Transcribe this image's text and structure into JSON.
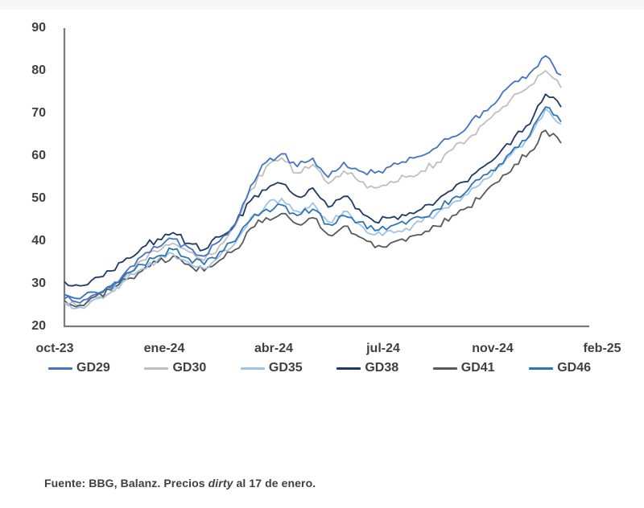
{
  "chart_data": {
    "type": "line",
    "title": "",
    "x_axis_tick_labels": [
      "oct-23",
      "ene-24",
      "abr-24",
      "jul-24",
      "nov-24",
      "feb-25"
    ],
    "y_ticks": [
      20,
      30,
      40,
      50,
      60,
      70,
      80,
      90
    ],
    "ylim": [
      20,
      90
    ],
    "grid": false,
    "legend_position": "bottom",
    "axis_color": "#7a7a7a",
    "tick_label_color": "#404040",
    "x": [
      "2023-10-01",
      "2023-10-16",
      "2023-10-31",
      "2023-11-15",
      "2023-11-30",
      "2023-12-15",
      "2023-12-30",
      "2024-01-14",
      "2024-01-29",
      "2024-02-13",
      "2024-02-28",
      "2024-03-14",
      "2024-03-29",
      "2024-04-13",
      "2024-04-28",
      "2024-05-13",
      "2024-05-28",
      "2024-06-12",
      "2024-06-27",
      "2024-07-12",
      "2024-07-27",
      "2024-08-11",
      "2024-08-26",
      "2024-09-10",
      "2024-09-25",
      "2024-10-10",
      "2024-10-25",
      "2024-11-09",
      "2024-11-24",
      "2024-12-09",
      "2024-12-24",
      "2025-01-08",
      "2025-01-17"
    ],
    "series": [
      {
        "name": "GD29",
        "color": "#4472C4",
        "values": [
          26.5,
          25.5,
          27.5,
          29,
          33,
          36.5,
          38.5,
          40.5,
          38.5,
          36.5,
          40,
          44,
          53,
          58.5,
          60.5,
          57.5,
          59.5,
          55,
          58.5,
          56.5,
          56,
          57.5,
          58.5,
          60,
          62,
          64.5,
          67,
          70.5,
          73.5,
          77.5,
          79.5,
          83.5,
          79
        ]
      },
      {
        "name": "GD30",
        "color": "#BFBFBF",
        "values": [
          25.5,
          24.8,
          26.5,
          28,
          32,
          35.5,
          37.5,
          39.5,
          37.5,
          35.5,
          39,
          43.5,
          52,
          57.5,
          59.5,
          56,
          58,
          53.5,
          56.5,
          54,
          52.5,
          54,
          55,
          56.5,
          58.5,
          61.5,
          64,
          67.5,
          70.5,
          74.5,
          76.5,
          80,
          76
        ]
      },
      {
        "name": "GD35",
        "color": "#9DC3E6",
        "values": [
          25.5,
          24.5,
          26.5,
          28,
          31,
          33.5,
          35.5,
          37,
          35,
          33.5,
          36.5,
          39.5,
          45.5,
          48.5,
          50,
          47,
          49,
          44.5,
          47,
          44,
          41.5,
          42.5,
          43,
          44.5,
          46.5,
          49,
          51,
          54.5,
          57.5,
          61.5,
          64.5,
          71,
          67.5
        ]
      },
      {
        "name": "GD38",
        "color": "#203864",
        "values": [
          30.5,
          29.5,
          31.5,
          33,
          36,
          38.5,
          40.5,
          42,
          39.5,
          38,
          41,
          44,
          49.5,
          52,
          53.5,
          50.5,
          52.5,
          48,
          50.5,
          47.5,
          44.5,
          45.5,
          46,
          47.5,
          49.5,
          52,
          54,
          57.5,
          60.5,
          64.5,
          67.5,
          74.5,
          71.5
        ]
      },
      {
        "name": "GD41",
        "color": "#595959",
        "values": [
          26,
          25,
          27,
          28.5,
          31,
          33,
          35,
          36.5,
          34.5,
          33,
          35.5,
          38,
          43,
          45.5,
          46.5,
          44,
          45.5,
          41.5,
          43.5,
          41,
          38.5,
          39.5,
          40,
          41.5,
          43.5,
          46,
          48,
          51,
          54,
          58,
          61,
          66,
          63
        ]
      },
      {
        "name": "GD46",
        "color": "#2E75B6",
        "values": [
          27.5,
          26.5,
          28,
          29.5,
          32.5,
          34.5,
          36.5,
          38,
          36,
          34.5,
          37.5,
          40,
          45,
          47.5,
          48.5,
          46,
          47.5,
          44,
          46,
          44.5,
          42.5,
          43.5,
          44,
          45.5,
          47.5,
          50,
          52,
          55.5,
          58,
          62,
          65,
          71.5,
          68
        ]
      }
    ]
  },
  "footer": {
    "prefix": "Fuente: BBG, Balanz. Precios ",
    "italic": "dirty",
    "suffix": " al 17 de enero."
  }
}
